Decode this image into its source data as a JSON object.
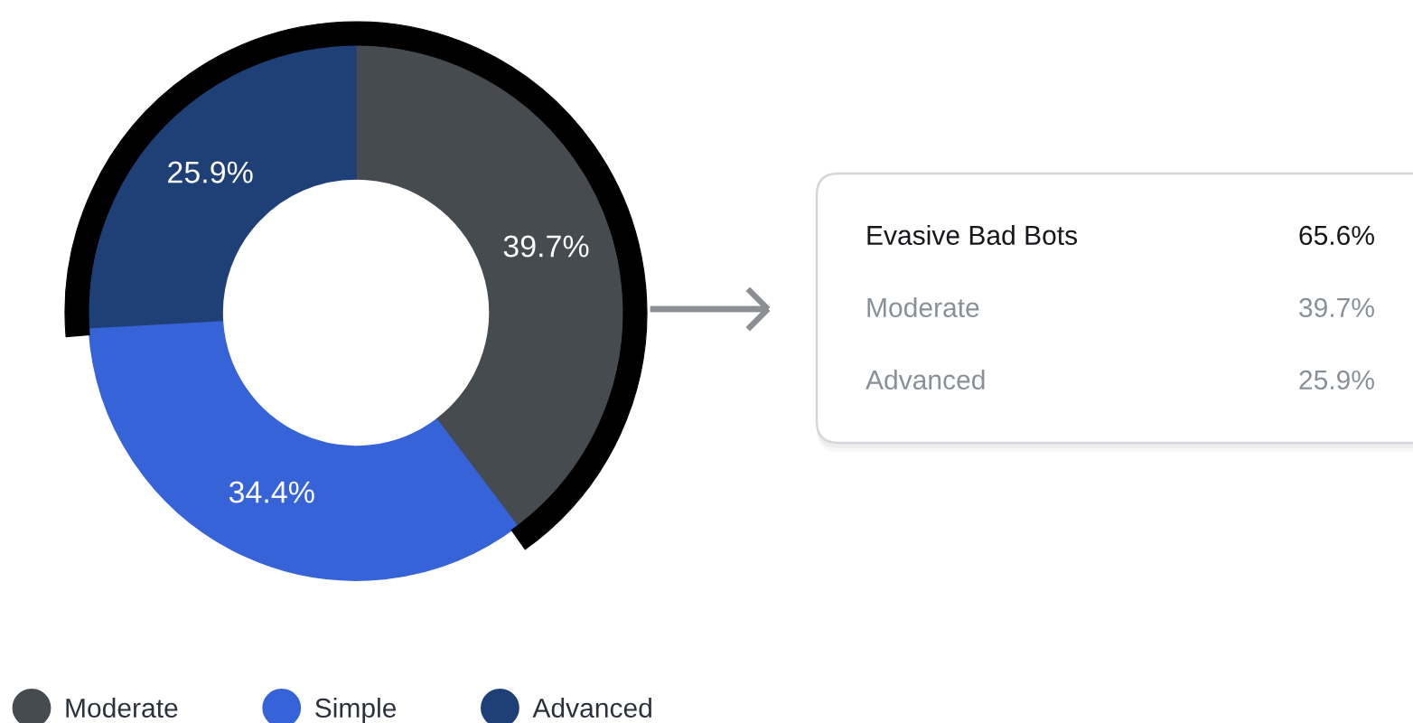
{
  "chart_data": [
    {
      "type": "donut",
      "categories": [
        "Moderate",
        "Simple",
        "Advanced"
      ],
      "values": [
        39.7,
        34.4,
        25.9
      ],
      "colors": [
        "#464b50",
        "#3763d9",
        "#1f4077"
      ],
      "value_labels": [
        "39.7%",
        "34.4%",
        "25.9%"
      ],
      "legend": "bottom left"
    },
    {
      "type": "other",
      "annotations": [
        "Evasive Bad Bots",
        "65.6%",
        "Moderate",
        "39.7%",
        "Advanced",
        "25.9%"
      ]
    }
  ]
}
